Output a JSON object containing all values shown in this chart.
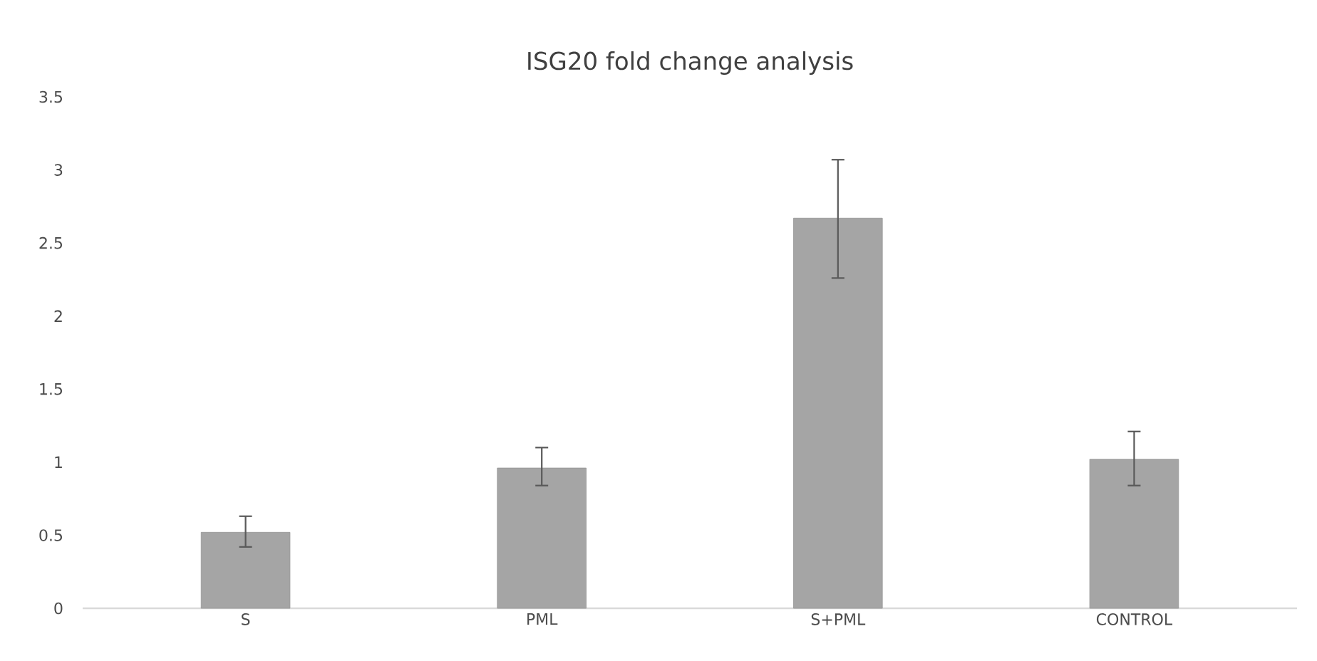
{
  "chart_data": {
    "type": "bar",
    "title": "ISG20 fold change analysis",
    "categories": [
      "S",
      "PML",
      "S+PML",
      "CONTROL"
    ],
    "values": [
      0.52,
      0.96,
      2.67,
      1.02
    ],
    "errors": [
      [
        0.42,
        0.63
      ],
      [
        0.84,
        1.1
      ],
      [
        2.26,
        3.07
      ],
      [
        0.84,
        1.21
      ]
    ],
    "color": "#a5a5a5",
    "ylim": [
      0,
      3.5
    ],
    "yticks": [
      0,
      0.5,
      1,
      1.5,
      2,
      2.5,
      3,
      3.5
    ]
  }
}
